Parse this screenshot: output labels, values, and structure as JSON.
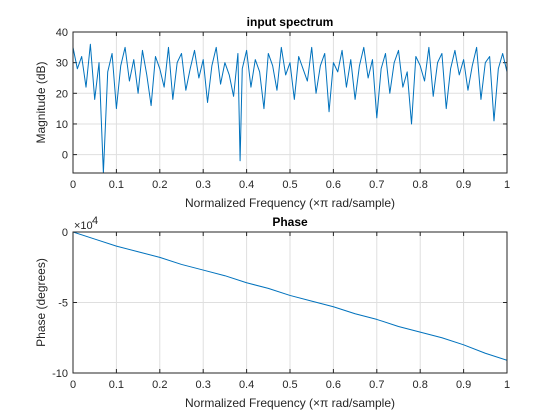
{
  "colors": {
    "series": "#0072bd",
    "grid": "#dfdfdf",
    "axis": "#262626"
  },
  "chart_data": [
    {
      "type": "line",
      "title": "input spectrum",
      "xlabel": "Normalized Frequency  (×π rad/sample)",
      "ylabel": "Magnitude (dB)",
      "xlim": [
        0,
        1
      ],
      "ylim": [
        -6,
        40
      ],
      "xticks": [
        "0",
        "0.1",
        "0.2",
        "0.3",
        "0.4",
        "0.5",
        "0.6",
        "0.7",
        "0.8",
        "0.9",
        "1"
      ],
      "yticks": [
        "0",
        "10",
        "20",
        "30",
        "40"
      ],
      "grid": true,
      "series": [
        {
          "x": [
            0,
            0.01,
            0.02,
            0.03,
            0.04,
            0.05,
            0.06,
            0.065,
            0.07,
            0.08,
            0.09,
            0.1,
            0.11,
            0.12,
            0.13,
            0.14,
            0.15,
            0.16,
            0.17,
            0.18,
            0.19,
            0.2,
            0.21,
            0.22,
            0.23,
            0.24,
            0.25,
            0.26,
            0.27,
            0.28,
            0.29,
            0.3,
            0.31,
            0.32,
            0.33,
            0.34,
            0.35,
            0.36,
            0.37,
            0.38,
            0.385,
            0.39,
            0.4,
            0.41,
            0.42,
            0.43,
            0.44,
            0.45,
            0.46,
            0.47,
            0.48,
            0.49,
            0.5,
            0.51,
            0.52,
            0.53,
            0.54,
            0.55,
            0.56,
            0.57,
            0.58,
            0.59,
            0.6,
            0.61,
            0.62,
            0.63,
            0.64,
            0.65,
            0.66,
            0.67,
            0.68,
            0.69,
            0.7,
            0.71,
            0.72,
            0.73,
            0.74,
            0.75,
            0.76,
            0.77,
            0.78,
            0.79,
            0.8,
            0.81,
            0.82,
            0.83,
            0.84,
            0.85,
            0.86,
            0.87,
            0.88,
            0.89,
            0.9,
            0.91,
            0.92,
            0.93,
            0.94,
            0.95,
            0.96,
            0.97,
            0.98,
            0.99,
            1
          ],
          "y": [
            35,
            28,
            32,
            22,
            36,
            18,
            30,
            12,
            -6,
            27,
            33,
            15,
            29,
            35,
            24,
            31,
            20,
            34,
            26,
            16,
            32,
            28,
            22,
            35,
            18,
            30,
            33,
            21,
            28,
            34,
            25,
            31,
            17,
            29,
            35,
            23,
            30,
            26,
            19,
            33,
            -2,
            28,
            34,
            22,
            31,
            27,
            15,
            33,
            29,
            21,
            35,
            26,
            30,
            18,
            32,
            28,
            24,
            35,
            20,
            29,
            33,
            14,
            30,
            27,
            34,
            22,
            31,
            18,
            29,
            35,
            25,
            31,
            12,
            28,
            33,
            20,
            30,
            34,
            22,
            27,
            10,
            32,
            29,
            24,
            35,
            19,
            30,
            33,
            15,
            28,
            34,
            26,
            31,
            21,
            29,
            35,
            18,
            30,
            32,
            11,
            28,
            33,
            27
          ]
        }
      ]
    },
    {
      "type": "line",
      "title": "Phase",
      "xlabel": "Normalized Frequency  (×π rad/sample)",
      "ylabel": "Phase (degrees)",
      "xlim": [
        0,
        1
      ],
      "ylim": [
        -10,
        0
      ],
      "y_exponent_base": "×10",
      "y_exponent": "4",
      "xticks": [
        "0",
        "0.1",
        "0.2",
        "0.3",
        "0.4",
        "0.5",
        "0.6",
        "0.7",
        "0.8",
        "0.9",
        "1"
      ],
      "yticks": [
        "-10",
        "-5",
        "0"
      ],
      "grid": true,
      "series": [
        {
          "x": [
            0,
            0.05,
            0.1,
            0.15,
            0.2,
            0.25,
            0.3,
            0.35,
            0.4,
            0.45,
            0.5,
            0.55,
            0.6,
            0.65,
            0.7,
            0.75,
            0.8,
            0.85,
            0.9,
            0.95,
            1
          ],
          "y": [
            0,
            -0.5,
            -1.0,
            -1.4,
            -1.8,
            -2.3,
            -2.7,
            -3.1,
            -3.6,
            -4.0,
            -4.5,
            -4.9,
            -5.3,
            -5.8,
            -6.2,
            -6.7,
            -7.1,
            -7.5,
            -8.0,
            -8.6,
            -9.1
          ]
        }
      ]
    }
  ]
}
